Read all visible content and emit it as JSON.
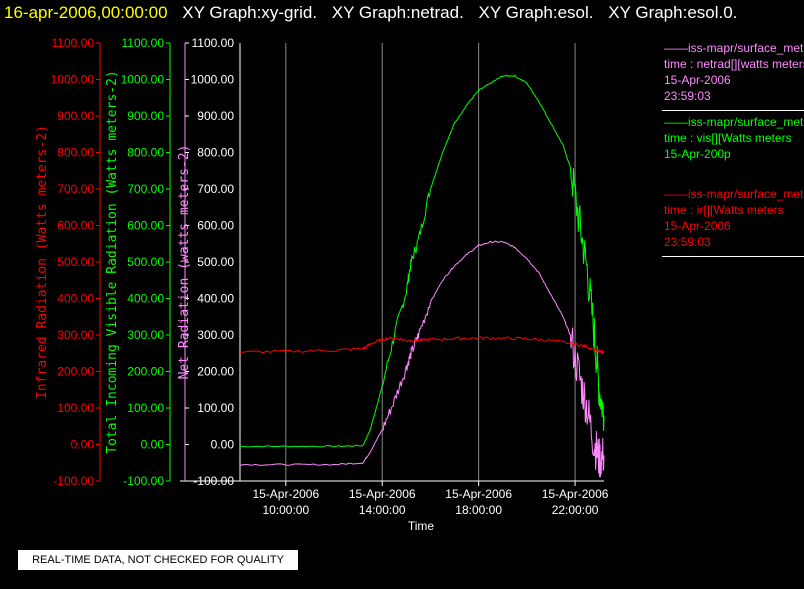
{
  "header": {
    "date": "16-apr-2006,00:00:00",
    "graphs": [
      "XY Graph:xy-grid.",
      "XY Graph:netrad.",
      "XY Graph:esol.",
      "XY Graph:esol.0."
    ]
  },
  "legend": [
    {
      "lines": [
        "——iss-mapr/surface_met",
        "time : netrad[][watts meters",
        "15-Apr-2006",
        "23:59:03"
      ],
      "color": "#ff88ff"
    },
    {
      "lines": [
        "——iss-mapr/surface_met",
        "time : vis[][Watts meters",
        "15-Apr-200p"
      ],
      "color": "#00ff00"
    },
    {
      "lines": [
        "——iss-mapr/surface_met",
        "time : ir[][Watts meters",
        "15-Apr-2006",
        "23:59:03"
      ],
      "color": "#ff0000"
    }
  ],
  "banner": "REAL-TIME DATA, NOT CHECKED FOR QUALITY",
  "colors": {
    "ir": "#ff0000",
    "vis": "#00ff00",
    "net": "#ff88ff",
    "axis": "#ffffff",
    "grid": "#888888"
  },
  "chart_data": {
    "type": "line",
    "xlabel": "Time",
    "x_ticks": [
      {
        "hour": 10,
        "date": "15-Apr-2006",
        "time": "10:00:00"
      },
      {
        "hour": 14,
        "date": "15-Apr-2006",
        "time": "14:00:00"
      },
      {
        "hour": 18,
        "date": "15-Apr-2006",
        "time": "18:00:00"
      },
      {
        "hour": 22,
        "date": "15-Apr-2006",
        "time": "22:00:00"
      }
    ],
    "xlim": [
      8.1,
      23.2
    ],
    "ylim": [
      -100,
      1100
    ],
    "y_ticks": [
      -100,
      0,
      100,
      200,
      300,
      400,
      500,
      600,
      700,
      800,
      900,
      1000,
      1100
    ],
    "y_axes": [
      {
        "key": "ir",
        "label": "Infrared Radiation (Watts meters-2)",
        "tick_labels": [
          "-100.00",
          "0.00",
          "100.00",
          "200.00",
          "300.00",
          "400.00",
          "500.00",
          "600.00",
          "700.00",
          "800.00",
          "900.00",
          "1000.00",
          "1100.00"
        ]
      },
      {
        "key": "vis",
        "label": "Total Incoming Visible Radiation (Watts meters-2)",
        "tick_labels": [
          "-100.00",
          "0.00",
          "100.00",
          "200.00",
          "300.00",
          "400.00",
          "500.00",
          "600.00",
          "700.00",
          "800.00",
          "900.00",
          "1000.00",
          "1100.00"
        ]
      },
      {
        "key": "net",
        "label": "Net Radiation (watts meters-2)",
        "tick_labels": [
          "-100.00",
          "0.00",
          "100.00",
          "200.00",
          "300.00",
          "400.00",
          "500.00",
          "600.00",
          "700.00",
          "800.00",
          "900.00",
          "1000.00",
          "1100.00"
        ]
      }
    ],
    "series": [
      {
        "key": "vis",
        "x": [
          8.1,
          10,
          12,
          13.2,
          13.5,
          14,
          14.5,
          15,
          15.2,
          15.5,
          16,
          16.5,
          17,
          17.5,
          18,
          18.5,
          19,
          19.5,
          20,
          20.5,
          21,
          21.5,
          21.8,
          22.2,
          22.5,
          22.8,
          23.0,
          23.2
        ],
        "y": [
          -5,
          -5,
          -5,
          -3,
          40,
          160,
          300,
          420,
          500,
          560,
          700,
          800,
          880,
          930,
          970,
          990,
          1010,
          1010,
          990,
          940,
          880,
          820,
          760,
          600,
          480,
          300,
          150,
          80
        ]
      },
      {
        "key": "net",
        "x": [
          8.1,
          10,
          12,
          13.2,
          13.5,
          14,
          14.5,
          15,
          15.2,
          15.5,
          16,
          16.5,
          17,
          17.5,
          18,
          18.5,
          19,
          19.5,
          20,
          20.5,
          21,
          21.5,
          21.8,
          22.2,
          22.5,
          22.8,
          23.0,
          23.2
        ],
        "y": [
          -55,
          -55,
          -55,
          -50,
          -20,
          40,
          120,
          210,
          250,
          300,
          390,
          450,
          490,
          520,
          545,
          555,
          555,
          540,
          510,
          470,
          410,
          350,
          300,
          180,
          100,
          0,
          -40,
          -30
        ]
      },
      {
        "key": "ir",
        "x": [
          8.1,
          10,
          12,
          13.2,
          13.5,
          14,
          14.5,
          15,
          15.5,
          16,
          17,
          18,
          19,
          20,
          21,
          22,
          22.5,
          23.0,
          23.2
        ],
        "y": [
          253,
          255,
          258,
          262,
          275,
          288,
          292,
          285,
          285,
          288,
          290,
          292,
          291,
          290,
          285,
          275,
          268,
          255,
          250
        ]
      }
    ]
  }
}
